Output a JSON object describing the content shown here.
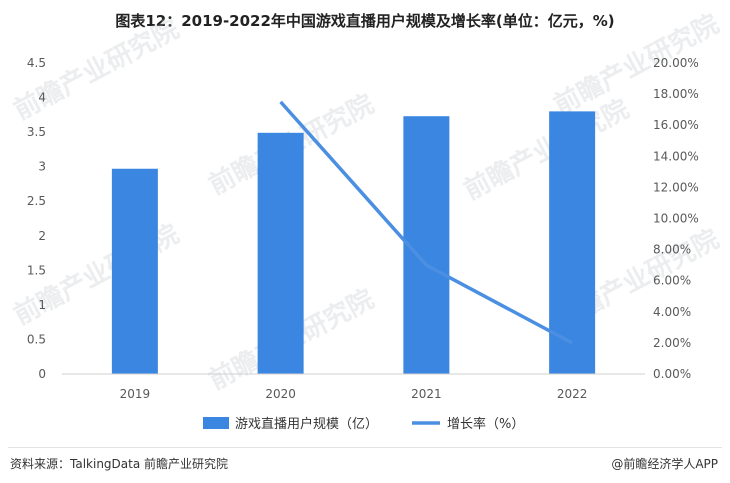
{
  "chart_data": {
    "type": "bar",
    "title": "图表12：2019-2022年中国游戏直播用户规模及增长率(单位：亿元，%)",
    "categories": [
      "2019",
      "2020",
      "2021",
      "2022"
    ],
    "series": [
      {
        "name": "游戏直播用户规模（亿）",
        "type": "bar",
        "axis": "left",
        "color": "#3b86e0",
        "values": [
          2.97,
          3.49,
          3.73,
          3.8
        ]
      },
      {
        "name": "增长率（%）",
        "type": "line",
        "axis": "right",
        "color": "#4a8fe2",
        "values": [
          null,
          17.5,
          7.0,
          2.0
        ]
      }
    ],
    "y_left": {
      "min": 0,
      "max": 4.5,
      "step": 0.5,
      "ticks": [
        "0",
        "0.5",
        "1",
        "1.5",
        "2",
        "2.5",
        "3",
        "3.5",
        "4",
        "4.5"
      ]
    },
    "y_right": {
      "min": 0,
      "max": 20,
      "step": 2,
      "ticks": [
        "0.00%",
        "2.00%",
        "4.00%",
        "6.00%",
        "8.00%",
        "10.00%",
        "12.00%",
        "14.00%",
        "16.00%",
        "18.00%",
        "20.00%"
      ]
    },
    "grid": false,
    "legend_position": "bottom"
  },
  "watermark_text": "前瞻产业研究院",
  "footer": {
    "source": "资料来源：TalkingData 前瞻产业研究院",
    "brand": "@前瞻经济学人APP"
  }
}
